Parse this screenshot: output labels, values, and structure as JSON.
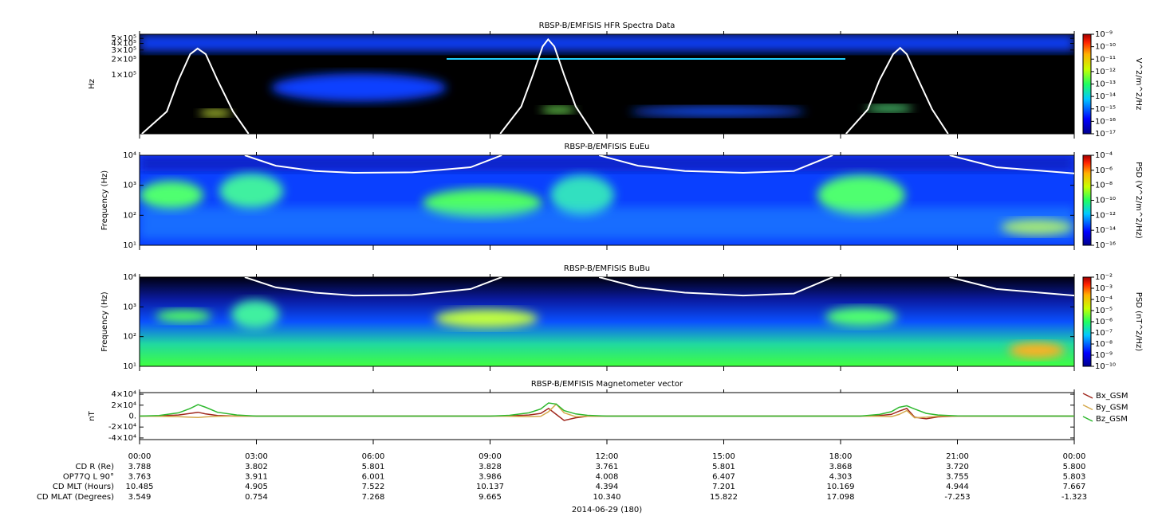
{
  "chart_data": [
    {
      "type": "spectrogram",
      "title": "RBSP-B/EMFISIS  HFR Spectra Data",
      "ylabel": "Hz",
      "log_y": true,
      "ylim": [
        7500,
        600000
      ],
      "yticks": [
        {
          "value": 100000,
          "label": "1×10⁵"
        },
        {
          "value": 200000,
          "label": "2×10⁵"
        },
        {
          "value": 300000,
          "label": "3×10⁵"
        },
        {
          "value": 400000,
          "label": "4×10⁵"
        },
        {
          "value": 500000,
          "label": "5×10⁵"
        }
      ],
      "colorbar": {
        "label": "V^2/m^2/Hz",
        "log": true,
        "clim": [
          1e-17,
          1e-09
        ],
        "ticks": [
          {
            "value": 1e-09,
            "label": "10⁻⁹"
          },
          {
            "value": 1e-10,
            "label": "10⁻¹⁰"
          },
          {
            "value": 1e-11,
            "label": "10⁻¹¹"
          },
          {
            "value": 1e-12,
            "label": "10⁻¹²"
          },
          {
            "value": 1e-13,
            "label": "10⁻¹³"
          },
          {
            "value": 1e-14,
            "label": "10⁻¹⁴"
          },
          {
            "value": 1e-15,
            "label": "10⁻¹⁵"
          },
          {
            "value": 1e-16,
            "label": "10⁻¹⁶"
          },
          {
            "value": 1e-17,
            "label": "10⁻¹⁷"
          }
        ]
      },
      "series": [
        {
          "color": "#ffffff",
          "x": [
            0.06,
            0.7,
            1.0,
            1.3,
            1.49,
            1.7,
            2.0,
            2.4,
            2.8,
            null,
            9.26,
            9.8,
            10.1,
            10.35,
            10.49,
            10.65,
            10.9,
            11.2,
            11.66,
            null,
            18.14,
            18.7,
            19.0,
            19.35,
            19.53,
            19.7,
            20.0,
            20.35,
            20.76
          ],
          "values": [
            7500,
            20000,
            80000,
            250000,
            320000,
            250000,
            80000,
            20000,
            7500,
            null,
            7500,
            25000,
            100000,
            350000,
            480000,
            350000,
            100000,
            25000,
            7500,
            null,
            7500,
            22000,
            80000,
            250000,
            330000,
            250000,
            80000,
            22000,
            7500
          ]
        }
      ]
    },
    {
      "type": "spectrogram",
      "title": "RBSP-B/EMFISIS  EuEu",
      "ylabel": "Frequency (Hz)",
      "log_y": true,
      "ylim": [
        10,
        10000
      ],
      "yticks": [
        {
          "value": 10,
          "label": "10¹"
        },
        {
          "value": 100,
          "label": "10²"
        },
        {
          "value": 1000,
          "label": "10³"
        },
        {
          "value": 10000,
          "label": "10⁴"
        }
      ],
      "colorbar": {
        "label": "PSD (V^2/m^2/Hz)",
        "log": true,
        "clim": [
          1e-16,
          0.0001
        ],
        "ticks": [
          {
            "value": 0.0001,
            "label": "10⁻⁴"
          },
          {
            "value": 1e-06,
            "label": "10⁻⁶"
          },
          {
            "value": 1e-08,
            "label": "10⁻⁸"
          },
          {
            "value": 1e-10,
            "label": "10⁻¹⁰"
          },
          {
            "value": 1e-12,
            "label": "10⁻¹²"
          },
          {
            "value": 1e-14,
            "label": "10⁻¹⁴"
          },
          {
            "value": 1e-16,
            "label": "10⁻¹⁶"
          }
        ]
      },
      "series": [
        {
          "color": "#ffffff",
          "x": [
            2.7,
            3.5,
            4.5,
            5.5,
            7.0,
            8.5,
            9.3,
            null,
            11.8,
            12.8,
            14.0,
            15.5,
            16.8,
            17.8,
            null,
            20.8,
            22.0,
            24.0
          ],
          "values": [
            10000,
            4500,
            3000,
            2600,
            2700,
            4000,
            10000,
            null,
            10000,
            4500,
            3000,
            2600,
            3000,
            10000,
            null,
            10000,
            4000,
            2500
          ]
        }
      ]
    },
    {
      "type": "spectrogram",
      "title": "RBSP-B/EMFISIS  BuBu",
      "ylabel": "Frequency (Hz)",
      "log_y": true,
      "ylim": [
        10,
        10000
      ],
      "yticks": [
        {
          "value": 10,
          "label": "10¹"
        },
        {
          "value": 100,
          "label": "10²"
        },
        {
          "value": 1000,
          "label": "10³"
        },
        {
          "value": 10000,
          "label": "10⁴"
        }
      ],
      "colorbar": {
        "label": "PSD (nT^2/Hz)",
        "log": true,
        "clim": [
          1e-10,
          0.01
        ],
        "ticks": [
          {
            "value": 0.01,
            "label": "10⁻²"
          },
          {
            "value": 0.001,
            "label": "10⁻³"
          },
          {
            "value": 0.0001,
            "label": "10⁻⁴"
          },
          {
            "value": 1e-05,
            "label": "10⁻⁵"
          },
          {
            "value": 1e-06,
            "label": "10⁻⁶"
          },
          {
            "value": 1e-07,
            "label": "10⁻⁷"
          },
          {
            "value": 1e-08,
            "label": "10⁻⁸"
          },
          {
            "value": 1e-09,
            "label": "10⁻⁹"
          },
          {
            "value": 1e-10,
            "label": "10⁻¹⁰"
          }
        ]
      },
      "series": [
        {
          "color": "#ffffff",
          "x": [
            2.7,
            3.5,
            4.5,
            5.5,
            7.0,
            8.5,
            9.3,
            null,
            11.8,
            12.8,
            14.0,
            15.5,
            16.8,
            17.8,
            null,
            20.8,
            22.0,
            24.0
          ],
          "values": [
            10000,
            4500,
            3000,
            2400,
            2500,
            4000,
            10000,
            null,
            10000,
            4500,
            3000,
            2400,
            2800,
            10000,
            null,
            10000,
            4000,
            2400
          ]
        }
      ]
    },
    {
      "type": "line",
      "title": "RBSP-B/EMFISIS  Magnetometer vector",
      "ylabel": "nT",
      "ylim": [
        -43000,
        43000
      ],
      "yticks": [
        {
          "value": 40000,
          "label": "4×10⁴"
        },
        {
          "value": 20000,
          "label": "2×10⁴"
        },
        {
          "value": 0,
          "label": "0."
        },
        {
          "value": -20000,
          "label": "-2×10⁴"
        },
        {
          "value": -40000,
          "label": "-4×10⁴"
        }
      ],
      "xlim": [
        0,
        24
      ],
      "xticks": [
        {
          "value": 0,
          "label": "00:00"
        },
        {
          "value": 3,
          "label": "03:00"
        },
        {
          "value": 6,
          "label": "06:00"
        },
        {
          "value": 9,
          "label": "09:00"
        },
        {
          "value": 12,
          "label": "12:00"
        },
        {
          "value": 15,
          "label": "15:00"
        },
        {
          "value": 18,
          "label": "18:00"
        },
        {
          "value": 21,
          "label": "21:00"
        },
        {
          "value": 24,
          "label": "00:00"
        }
      ],
      "legend": "right",
      "x": [
        0,
        0.5,
        1,
        1.3,
        1.5,
        1.7,
        2,
        2.5,
        3,
        9,
        9.5,
        10,
        10.3,
        10.5,
        10.7,
        10.9,
        11.2,
        11.5,
        12,
        18.5,
        19,
        19.3,
        19.5,
        19.7,
        19.9,
        20.2,
        20.5,
        21,
        24
      ],
      "series": [
        {
          "name": "Bx_GSM",
          "color": "#a0281e",
          "values": [
            0,
            300,
            2000,
            5000,
            7000,
            4000,
            1000,
            0,
            0,
            0,
            500,
            2000,
            5000,
            14000,
            3000,
            -8000,
            -3000,
            -500,
            0,
            0,
            1000,
            3000,
            9000,
            14000,
            -2000,
            -5000,
            -1500,
            0,
            0
          ]
        },
        {
          "name": "By_GSM",
          "color": "#d4a84a",
          "values": [
            0,
            -300,
            -1000,
            -2000,
            -2500,
            -1500,
            -500,
            0,
            0,
            0,
            -300,
            -1000,
            -500,
            8000,
            22000,
            6000,
            -1000,
            -500,
            0,
            0,
            -300,
            -1000,
            3000,
            10000,
            -3000,
            -2000,
            -500,
            0,
            0
          ]
        },
        {
          "name": "Bz_GSM",
          "color": "#2eb82e",
          "values": [
            0,
            1000,
            6000,
            14000,
            21000,
            16000,
            7000,
            2000,
            0,
            0,
            1500,
            6000,
            13000,
            24000,
            22000,
            10000,
            4000,
            1500,
            0,
            0,
            3000,
            8000,
            16000,
            19000,
            13000,
            5000,
            2000,
            500,
            0
          ]
        }
      ]
    }
  ],
  "ephemeris": {
    "date": "2014-06-29 (180)",
    "rows": [
      {
        "label": "CD R (Re)",
        "values": [
          "3.788",
          "3.802",
          "5.801",
          "3.828",
          "3.761",
          "5.801",
          "3.868",
          "3.720",
          "5.800"
        ]
      },
      {
        "label": "OP77Q L 90°",
        "values": [
          "3.763",
          "3.911",
          "6.001",
          "3.986",
          "4.008",
          "6.407",
          "4.303",
          "3.755",
          "5.803"
        ]
      },
      {
        "label": "CD MLT (Hours)",
        "values": [
          "10.485",
          "4.905",
          "7.522",
          "10.137",
          "4.394",
          "7.201",
          "10.169",
          "4.944",
          "7.667"
        ]
      },
      {
        "label": "CD MLAT (Degrees)",
        "values": [
          "3.549",
          "0.754",
          "7.268",
          "9.665",
          "10.340",
          "15.822",
          "17.098",
          "-7.253",
          "-1.323"
        ]
      }
    ]
  }
}
